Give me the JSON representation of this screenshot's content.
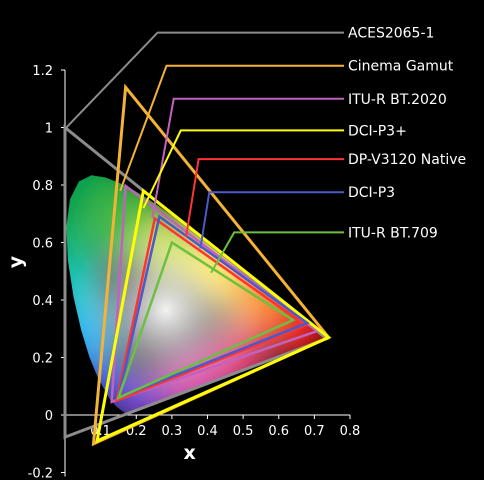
{
  "chart_data": {
    "type": "scatter",
    "xlabel": "x",
    "ylabel": "y",
    "xlim": [
      0,
      0.8
    ],
    "ylim": [
      -0.2,
      1.2
    ],
    "xticks": [
      "0.1",
      "0.2",
      "0.3",
      "0.4",
      "0.5",
      "0.6",
      "0.7",
      "0.8"
    ],
    "yticks": [
      "-0.2",
      "0",
      "0.2",
      "0.4",
      "0.6",
      "0.8",
      "1",
      "1.2"
    ],
    "background": "#000000",
    "spectral_locus": [
      [
        0.1741,
        0.005
      ],
      [
        0.1738,
        0.0049
      ],
      [
        0.1733,
        0.0048
      ],
      [
        0.1726,
        0.0048
      ],
      [
        0.1714,
        0.0051
      ],
      [
        0.1689,
        0.0069
      ],
      [
        0.1644,
        0.0109
      ],
      [
        0.1566,
        0.0177
      ],
      [
        0.144,
        0.0297
      ],
      [
        0.1241,
        0.0578
      ],
      [
        0.0913,
        0.1327
      ],
      [
        0.0687,
        0.2007
      ],
      [
        0.0454,
        0.295
      ],
      [
        0.0235,
        0.4127
      ],
      [
        0.0082,
        0.5384
      ],
      [
        0.0039,
        0.6548
      ],
      [
        0.0139,
        0.7502
      ],
      [
        0.0389,
        0.812
      ],
      [
        0.0743,
        0.8338
      ],
      [
        0.1142,
        0.8262
      ],
      [
        0.1547,
        0.8059
      ],
      [
        0.1929,
        0.7816
      ],
      [
        0.2296,
        0.7543
      ],
      [
        0.2658,
        0.7243
      ],
      [
        0.3016,
        0.6923
      ],
      [
        0.3373,
        0.6589
      ],
      [
        0.3731,
        0.6245
      ],
      [
        0.4087,
        0.5896
      ],
      [
        0.4441,
        0.5547
      ],
      [
        0.4788,
        0.5202
      ],
      [
        0.5125,
        0.4866
      ],
      [
        0.5448,
        0.4544
      ],
      [
        0.5752,
        0.4242
      ],
      [
        0.6029,
        0.3965
      ],
      [
        0.627,
        0.3725
      ],
      [
        0.6482,
        0.3514
      ],
      [
        0.6658,
        0.334
      ],
      [
        0.6801,
        0.3197
      ],
      [
        0.6915,
        0.3083
      ],
      [
        0.7006,
        0.2993
      ],
      [
        0.7079,
        0.292
      ],
      [
        0.714,
        0.2859
      ],
      [
        0.719,
        0.2809
      ],
      [
        0.723,
        0.277
      ],
      [
        0.726,
        0.274
      ],
      [
        0.7283,
        0.2717
      ],
      [
        0.73,
        0.27
      ],
      [
        0.7311,
        0.2689
      ],
      [
        0.732,
        0.268
      ],
      [
        0.7327,
        0.2673
      ],
      [
        0.7334,
        0.2666
      ],
      [
        0.734,
        0.266
      ],
      [
        0.7344,
        0.2656
      ],
      [
        0.7346,
        0.2654
      ],
      [
        0.7347,
        0.2653
      ]
    ],
    "series": [
      {
        "name": "ACES2065-1",
        "color": "#8c8c8c",
        "points": [
          [
            0.7347,
            0.2653
          ],
          [
            0.0,
            1.0
          ],
          [
            0.0001,
            -0.077
          ]
        ],
        "label_y": 1.33
      },
      {
        "name": "Cinema Gamut",
        "color": "#f5b335",
        "points": [
          [
            0.74,
            0.27
          ],
          [
            0.17,
            1.14
          ],
          [
            0.08,
            -0.1
          ]
        ],
        "label_y": 1.215
      },
      {
        "name": "ITU-R BT.2020",
        "color": "#c262c0",
        "points": [
          [
            0.708,
            0.292
          ],
          [
            0.17,
            0.797
          ],
          [
            0.131,
            0.046
          ]
        ],
        "label_y": 1.1
      },
      {
        "name": "DCI-P3+",
        "color": "#ffff00",
        "points": [
          [
            0.74,
            0.27
          ],
          [
            0.22,
            0.78
          ],
          [
            0.09,
            -0.09
          ]
        ],
        "label_y": 0.99
      },
      {
        "name": "DP-V3120 Native",
        "color": "#ff3333",
        "points": [
          [
            0.675,
            0.312
          ],
          [
            0.252,
            0.683
          ],
          [
            0.145,
            0.05
          ]
        ],
        "label_y": 0.89
      },
      {
        "name": "DCI-P3",
        "color": "#4a5ac8",
        "points": [
          [
            0.68,
            0.32
          ],
          [
            0.265,
            0.69
          ],
          [
            0.15,
            0.06
          ]
        ],
        "label_y": 0.775
      },
      {
        "name": "ITU-R BT.709",
        "color": "#6cc040",
        "points": [
          [
            0.64,
            0.33
          ],
          [
            0.3,
            0.6
          ],
          [
            0.15,
            0.06
          ]
        ],
        "label_y": 0.635
      }
    ]
  }
}
